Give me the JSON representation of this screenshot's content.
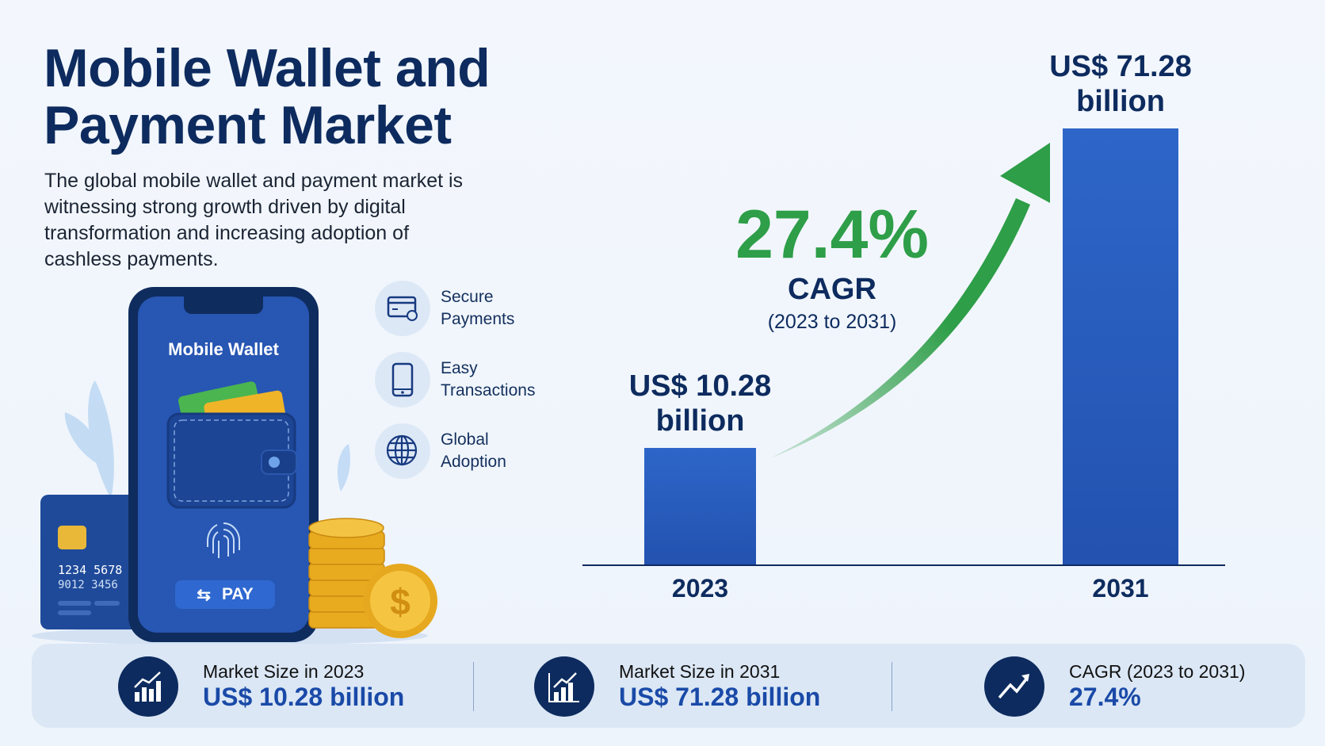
{
  "header": {
    "title_line1": "Mobile Wallet and",
    "title_line2": "Payment Market",
    "description": "The global mobile wallet and payment market is witnessing strong growth driven by digital transformation and increasing adoption of cashless payments."
  },
  "illustration": {
    "phone_title": "Mobile Wallet",
    "pay_button": "PAY",
    "card_number_line1": "1234  5678",
    "card_number_line2": "9012  3456"
  },
  "features": [
    {
      "icon": "credit-card-lock-icon",
      "line1": "Secure",
      "line2": "Payments"
    },
    {
      "icon": "smartphone-icon",
      "line1": "Easy",
      "line2": "Transactions"
    },
    {
      "icon": "globe-icon",
      "line1": "Global",
      "line2": "Adoption"
    }
  ],
  "chart_data": {
    "type": "bar",
    "categories": [
      "2023",
      "2031"
    ],
    "values": [
      10.28,
      71.28
    ],
    "unit": "US$ billion",
    "data_labels": [
      [
        "US$ 10.28",
        "billion"
      ],
      [
        "US$ 71.28",
        "billion"
      ]
    ],
    "annotation": {
      "value": "27.4%",
      "label": "CAGR",
      "period": "(2023 to 2031)"
    },
    "colors": {
      "bars": "#2a5fc4",
      "arrow": "#2e9e48"
    },
    "grid": false
  },
  "stats": [
    {
      "icon": "bar-chart-growth-icon",
      "label": "Market Size in 2023",
      "value": "US$ 10.28 billion"
    },
    {
      "icon": "bar-chart-growth-icon",
      "label": "Market Size in 2031",
      "value": "US$ 71.28 billion"
    },
    {
      "icon": "trend-up-icon",
      "label": "CAGR (2023 to 2031)",
      "value": "27.4%"
    }
  ],
  "colors": {
    "navy": "#0d2b5e",
    "accent_blue": "#1a4aa8",
    "green": "#2e9e48",
    "gold": "#e8b020"
  }
}
